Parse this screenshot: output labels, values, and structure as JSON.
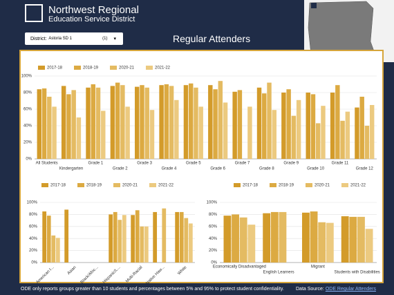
{
  "header": {
    "title": "Northwest Regional",
    "subtitle": "Education Service District",
    "filter_label": "District:",
    "filter_value": "Astoria SD 1",
    "filter_count": "(1)",
    "page_title": "Regular Attenders"
  },
  "footer": {
    "note": "ODE only reports groups greater than 10 students and percentages between 5% and 95% to protect student confidentiality.",
    "source_label": "Data Source:",
    "source_link": "ODE Regular Attenders"
  },
  "chart_data": [
    {
      "type": "bar",
      "categories": [
        "All Students",
        "Kindergarten",
        "Grade 1",
        "Grade 2",
        "Grade 3",
        "Grade 4",
        "Grade 5",
        "Grade 6",
        "Grade 7",
        "Grade 8",
        "Grade 9",
        "Grade 10",
        "Grade 11",
        "Grade 12"
      ],
      "series": [
        {
          "name": "2017-18",
          "color": "#d39b2a",
          "values": [
            84,
            88,
            86,
            88,
            87,
            89,
            89,
            89,
            81,
            86,
            80,
            80,
            80,
            62
          ]
        },
        {
          "name": "2018-19",
          "color": "#dcaa42",
          "values": [
            85,
            78,
            90,
            92,
            89,
            90,
            91,
            84,
            83,
            79,
            84,
            78,
            89,
            75
          ]
        },
        {
          "name": "2020-21",
          "color": "#e4bb62",
          "values": [
            75,
            83,
            86,
            89,
            86,
            88,
            86,
            94,
            null,
            92,
            52,
            43,
            46,
            40
          ]
        },
        {
          "name": "2021-22",
          "color": "#ecca80",
          "values": [
            63,
            50,
            58,
            63,
            59,
            71,
            63,
            68,
            63,
            59,
            71,
            64,
            57,
            65
          ]
        }
      ],
      "ylim": [
        0,
        100
      ],
      "yticks": [
        {
          "value": 0,
          "label": "0%"
        },
        {
          "value": 20,
          "label": "20%"
        },
        {
          "value": 40,
          "label": "40%"
        },
        {
          "value": 60,
          "label": "60%"
        },
        {
          "value": 80,
          "label": "80%"
        },
        {
          "value": 100,
          "label": "100%"
        }
      ],
      "grid": true,
      "legend": "top-left"
    },
    {
      "type": "bar",
      "categories": [
        "American I...",
        "Asian",
        "Black/Afric...",
        "Hispanic/L...",
        "Multi-Racial",
        "Native Haw...",
        "White"
      ],
      "series": [
        {
          "name": "2017-18",
          "color": "#d39b2a",
          "values": [
            85,
            88,
            null,
            80,
            79,
            84,
            84
          ]
        },
        {
          "name": "2018-19",
          "color": "#dcaa42",
          "values": [
            78,
            null,
            null,
            84,
            87,
            null,
            84
          ]
        },
        {
          "name": "2020-21",
          "color": "#e4bb62",
          "values": [
            45,
            null,
            null,
            71,
            60,
            90,
            74
          ]
        },
        {
          "name": "2021-22",
          "color": "#ecca80",
          "values": [
            41,
            null,
            null,
            79,
            60,
            null,
            65
          ]
        }
      ],
      "ylim": [
        0,
        100
      ],
      "yticks": [
        {
          "value": 0,
          "label": "0%"
        },
        {
          "value": 20,
          "label": "20%"
        },
        {
          "value": 40,
          "label": "40%"
        },
        {
          "value": 60,
          "label": "60%"
        },
        {
          "value": 80,
          "label": "80%"
        },
        {
          "value": 100,
          "label": "100%"
        }
      ],
      "grid": true,
      "legend": "top-left"
    },
    {
      "type": "bar",
      "categories": [
        "Economically Disadvantaged",
        "English Learners",
        "Migrant",
        "Students with Disabilities"
      ],
      "series": [
        {
          "name": "2017-18",
          "color": "#d39b2a",
          "values": [
            78,
            82,
            83,
            77
          ]
        },
        {
          "name": "2018-19",
          "color": "#dcaa42",
          "values": [
            80,
            84,
            85,
            76
          ]
        },
        {
          "name": "2020-21",
          "color": "#e4bb62",
          "values": [
            75,
            84,
            67,
            76
          ]
        },
        {
          "name": "2021-22",
          "color": "#ecca80",
          "values": [
            63,
            null,
            66,
            56
          ]
        }
      ],
      "ylim": [
        0,
        100
      ],
      "yticks": [
        {
          "value": 0,
          "label": "0%"
        },
        {
          "value": 20,
          "label": "20%"
        },
        {
          "value": 40,
          "label": "40%"
        },
        {
          "value": 60,
          "label": "60%"
        },
        {
          "value": 80,
          "label": "80%"
        },
        {
          "value": 100,
          "label": "100%"
        }
      ],
      "grid": true,
      "legend": "top-left"
    }
  ]
}
